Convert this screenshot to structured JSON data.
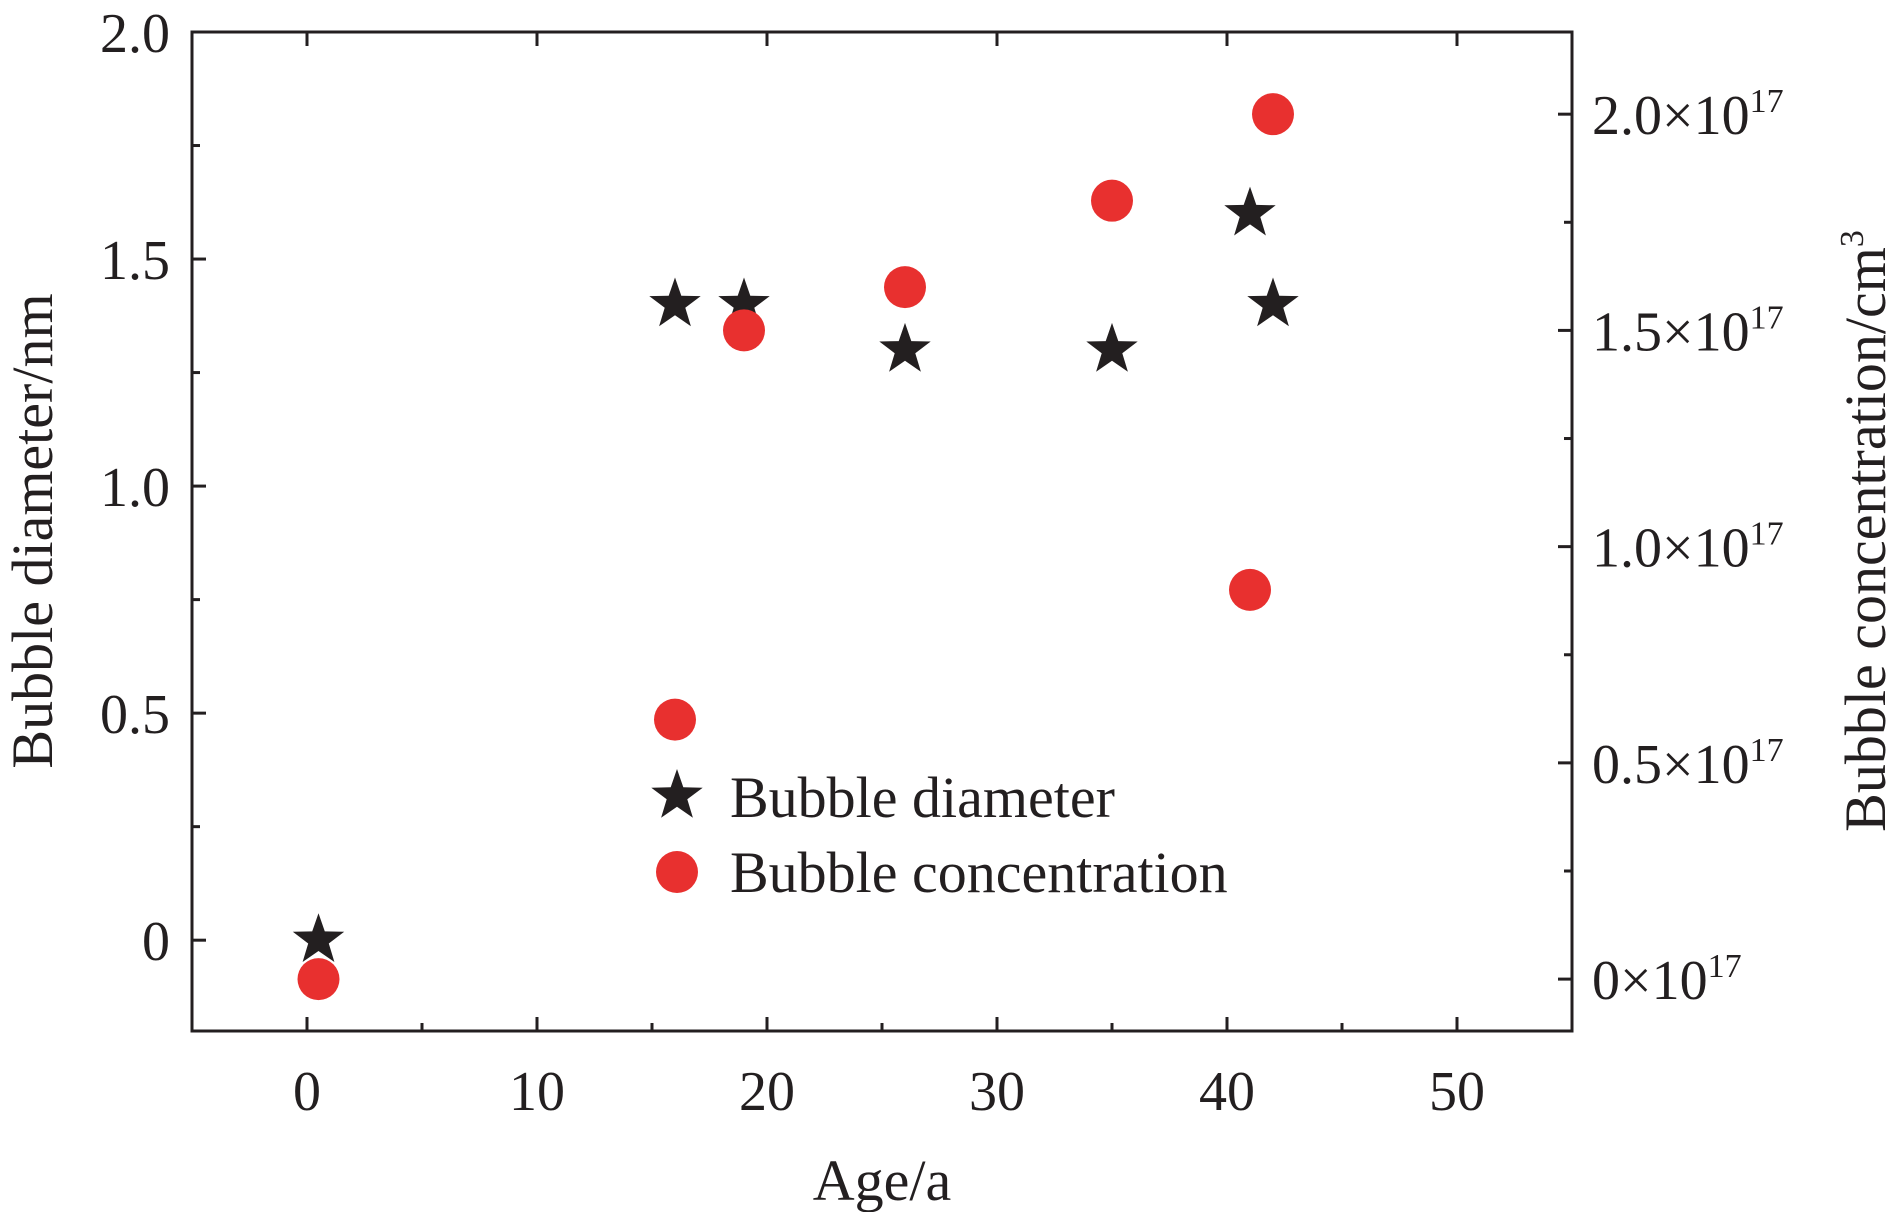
{
  "chart_data": {
    "type": "scatter",
    "xlabel": "Age/a",
    "ylabel_left": "Bubble diameter/nm",
    "ylabel_right": "Bubble concentration/cm",
    "ylabel_right_superscript": "3",
    "xlim": [
      -5,
      55
    ],
    "ylim_left": [
      -0.2,
      2.0
    ],
    "ylim_right": [
      -1.2e+16,
      2.19e+17
    ],
    "x_ticks": [
      0,
      10,
      20,
      30,
      40,
      50
    ],
    "x_tick_labels": [
      "0",
      "10",
      "20",
      "30",
      "40",
      "50"
    ],
    "y_left_ticks": [
      0,
      0.5,
      1.0,
      1.5,
      2.0
    ],
    "y_left_tick_labels": [
      "0",
      "0.5",
      "1.0",
      "1.5",
      "2.0"
    ],
    "y_right_ticks": [
      0,
      5e+16,
      1e+17,
      1.5e+17,
      2e+17
    ],
    "y_right_tick_labels": [
      {
        "base": "0×10",
        "exp": "17"
      },
      {
        "base": "0.5×10",
        "exp": "17"
      },
      {
        "base": "1.0×10",
        "exp": "17"
      },
      {
        "base": "1.5×10",
        "exp": "17"
      },
      {
        "base": "2.0×10",
        "exp": "17"
      }
    ],
    "grid": false,
    "legend_position": "center-bottom",
    "series": [
      {
        "name": "Bubble diameter",
        "marker": "star",
        "color": "#231f20",
        "axis": "left",
        "x": [
          0.5,
          16,
          19,
          26,
          35,
          41,
          42
        ],
        "y": [
          0,
          1.4,
          1.4,
          1.3,
          1.3,
          1.6,
          1.4
        ]
      },
      {
        "name": "Bubble concentration",
        "marker": "circle",
        "color": "#e8302f",
        "axis": "right",
        "x": [
          0.5,
          16,
          19,
          26,
          35,
          41,
          42
        ],
        "y": [
          0,
          6e+16,
          1.5e+17,
          1.6e+17,
          1.8e+17,
          9e+16,
          2e+17
        ]
      }
    ]
  }
}
